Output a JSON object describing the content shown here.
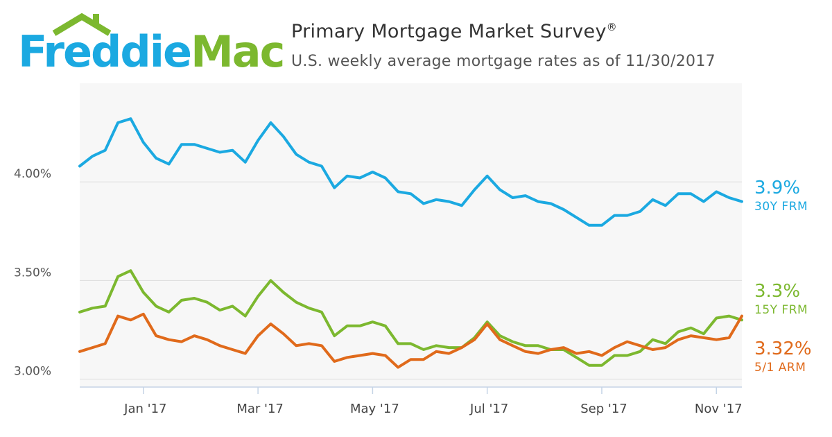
{
  "logo": {
    "word1": "Freddie",
    "word2": "Mac"
  },
  "header": {
    "title": "Primary Mortgage Market Survey",
    "title_mark": "®",
    "subtitle": "U.S. weekly average mortgage rates as of 11/30/2017"
  },
  "colors": {
    "frm30": "#1ba9e1",
    "frm15": "#7cb82f",
    "arm51": "#e06a1b"
  },
  "chart_data": {
    "type": "line",
    "title": "Primary Mortgage Market Survey",
    "subtitle": "U.S. weekly average mortgage rates as of 11/30/2017",
    "xlabel": "",
    "ylabel": "",
    "ylim": [
      2.96,
      4.5
    ],
    "yticks": [
      {
        "value": 3.0,
        "label": "3.00%"
      },
      {
        "value": 3.5,
        "label": "3.50%"
      },
      {
        "value": 4.0,
        "label": "4.00%"
      }
    ],
    "xticks": [
      {
        "index": 5,
        "label": "Jan '17"
      },
      {
        "index": 14,
        "label": "Mar '17"
      },
      {
        "index": 23,
        "label": "May '17"
      },
      {
        "index": 32,
        "label": "Jul '17"
      },
      {
        "index": 41,
        "label": "Sep '17"
      },
      {
        "index": 50,
        "label": "Nov '17"
      }
    ],
    "grid": true,
    "legend": "end-labels-right",
    "series": [
      {
        "name": "30Y FRM",
        "end_value": "3.9%",
        "color": "#1ba9e1",
        "values": [
          4.08,
          4.13,
          4.16,
          4.3,
          4.32,
          4.2,
          4.12,
          4.09,
          4.19,
          4.19,
          4.17,
          4.15,
          4.16,
          4.1,
          4.21,
          4.3,
          4.23,
          4.14,
          4.1,
          4.08,
          3.97,
          4.03,
          4.02,
          4.05,
          4.02,
          3.95,
          3.94,
          3.89,
          3.91,
          3.9,
          3.88,
          3.96,
          4.03,
          3.96,
          3.92,
          3.93,
          3.9,
          3.89,
          3.86,
          3.82,
          3.78,
          3.78,
          3.83,
          3.83,
          3.85,
          3.91,
          3.88,
          3.94,
          3.94,
          3.9,
          3.95,
          3.92,
          3.9
        ]
      },
      {
        "name": "15Y FRM",
        "end_value": "3.3%",
        "color": "#7cb82f",
        "values": [
          3.34,
          3.36,
          3.37,
          3.52,
          3.55,
          3.44,
          3.37,
          3.34,
          3.4,
          3.41,
          3.39,
          3.35,
          3.37,
          3.32,
          3.42,
          3.5,
          3.44,
          3.39,
          3.36,
          3.34,
          3.22,
          3.27,
          3.27,
          3.29,
          3.27,
          3.18,
          3.18,
          3.15,
          3.17,
          3.16,
          3.16,
          3.21,
          3.29,
          3.22,
          3.19,
          3.17,
          3.17,
          3.15,
          3.15,
          3.11,
          3.07,
          3.07,
          3.12,
          3.12,
          3.14,
          3.2,
          3.18,
          3.24,
          3.26,
          3.23,
          3.31,
          3.32,
          3.3
        ]
      },
      {
        "name": "5/1 ARM",
        "end_value": "3.32%",
        "color": "#e06a1b",
        "values": [
          3.14,
          3.16,
          3.18,
          3.32,
          3.3,
          3.33,
          3.22,
          3.2,
          3.19,
          3.22,
          3.2,
          3.17,
          3.15,
          3.13,
          3.22,
          3.28,
          3.23,
          3.17,
          3.18,
          3.17,
          3.09,
          3.11,
          3.12,
          3.13,
          3.12,
          3.06,
          3.1,
          3.1,
          3.14,
          3.13,
          3.16,
          3.2,
          3.28,
          3.2,
          3.17,
          3.14,
          3.13,
          3.15,
          3.16,
          3.13,
          3.14,
          3.12,
          3.16,
          3.19,
          3.17,
          3.15,
          3.16,
          3.2,
          3.22,
          3.21,
          3.2,
          3.21,
          3.32
        ]
      }
    ]
  }
}
